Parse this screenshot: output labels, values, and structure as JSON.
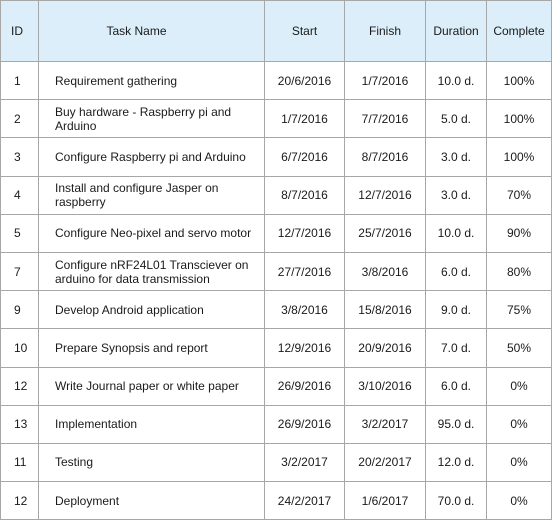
{
  "table": {
    "headers": [
      "ID",
      "Task Name",
      "Start",
      "Finish",
      "Duration",
      "Complete"
    ],
    "rows": [
      [
        "1",
        "Requirement gathering",
        "20/6/2016",
        "1/7/2016",
        "10.0 d.",
        "100%"
      ],
      [
        "2",
        "Buy hardware - Raspberry pi and Arduino",
        "1/7/2016",
        "7/7/2016",
        "5.0 d.",
        "100%"
      ],
      [
        "3",
        "Configure Raspberry pi and Arduino",
        "6/7/2016",
        "8/7/2016",
        "3.0 d.",
        "100%"
      ],
      [
        "4",
        "Install and configure Jasper on raspberry",
        "8/7/2016",
        "12/7/2016",
        "3.0 d.",
        "70%"
      ],
      [
        "5",
        "Configure Neo-pixel and servo motor",
        "12/7/2016",
        "25/7/2016",
        "10.0 d.",
        "90%"
      ],
      [
        "7",
        "Configure nRF24L01 Transciever on arduino for data transmission",
        "27/7/2016",
        "3/8/2016",
        "6.0 d.",
        "80%"
      ],
      [
        "9",
        "Develop Android application",
        "3/8/2016",
        "15/8/2016",
        "9.0 d.",
        "75%"
      ],
      [
        "10",
        "Prepare Synopsis and report",
        "12/9/2016",
        "20/9/2016",
        "7.0 d.",
        "50%"
      ],
      [
        "12",
        "Write Journal paper or white paper",
        "26/9/2016",
        "3/10/2016",
        "6.0 d.",
        "0%"
      ],
      [
        "13",
        "Implementation",
        "26/9/2016",
        "3/2/2017",
        "95.0 d.",
        "0%"
      ],
      [
        "11",
        "Testing",
        "3/2/2017",
        "20/2/2017",
        "12.0 d.",
        "0%"
      ],
      [
        "12",
        "Deployment",
        "24/2/2017",
        "1/6/2017",
        "70.0 d.",
        "0%"
      ]
    ]
  }
}
